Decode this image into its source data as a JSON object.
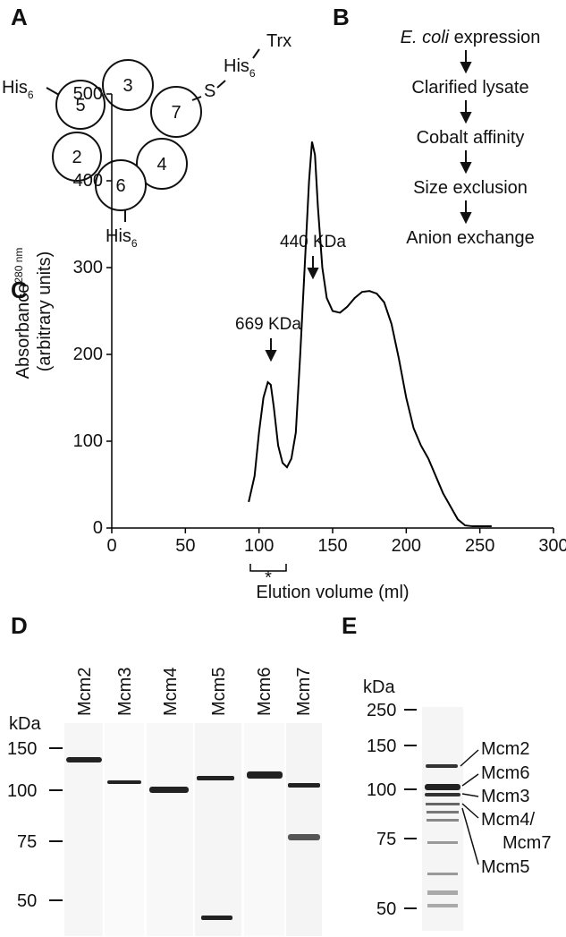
{
  "panel_a": {
    "label": "A",
    "subunits": [
      "3",
      "5",
      "7",
      "2",
      "4",
      "6"
    ],
    "tag": "His",
    "tag_sub": "6",
    "linker": "S",
    "fusion": "Trx"
  },
  "panel_b": {
    "label": "B",
    "species": "E. coli",
    "first_step": "expression",
    "steps": [
      "Clarified lysate",
      "Cobalt affinity",
      "Size exclusion",
      "Anion exchange"
    ]
  },
  "chart_data": {
    "type": "line",
    "panel_label": "C",
    "xlabel": "Elution volume (ml)",
    "ylabel": "Absorbance",
    "ylabel_sub": "280 nm",
    "ylabel_line2": "(arbitrary units)",
    "annotations": [
      "669 KDa",
      "440 KDa"
    ],
    "bracket_label": "*",
    "x": [
      93,
      97,
      100,
      103,
      106,
      108,
      110,
      113,
      116,
      119,
      122,
      125,
      128,
      131,
      134,
      136,
      138,
      140,
      143,
      146,
      150,
      155,
      160,
      165,
      170,
      175,
      180,
      185,
      190,
      195,
      200,
      205,
      210,
      215,
      220,
      225,
      230,
      235,
      240,
      245,
      258
    ],
    "series": [
      {
        "color": "#000000",
        "values": [
          30,
          60,
          110,
          150,
          168,
          165,
          140,
          95,
          75,
          70,
          80,
          110,
          200,
          300,
          400,
          445,
          430,
          370,
          300,
          265,
          250,
          248,
          255,
          265,
          272,
          273,
          270,
          260,
          235,
          195,
          150,
          115,
          95,
          80,
          60,
          40,
          25,
          10,
          3,
          2,
          2
        ]
      }
    ],
    "xlim": [
      0,
      300
    ],
    "ylim": [
      0,
      500
    ],
    "xticks": [
      0,
      50,
      100,
      150,
      200,
      250,
      300
    ],
    "yticks": [
      0,
      100,
      200,
      300,
      400,
      500
    ]
  },
  "panel_d": {
    "label": "D",
    "unit": "kDa",
    "lanes": [
      "Mcm2",
      "Mcm3",
      "Mcm4",
      "Mcm5",
      "Mcm6",
      "Mcm7"
    ],
    "markers": [
      "150",
      "100",
      "75",
      "50"
    ]
  },
  "panel_e": {
    "label": "E",
    "unit": "kDa",
    "markers": [
      "250",
      "150",
      "100",
      "75",
      "50"
    ],
    "bands": [
      "Mcm2",
      "Mcm6",
      "Mcm3",
      "Mcm4/",
      "Mcm7",
      "Mcm5"
    ]
  }
}
